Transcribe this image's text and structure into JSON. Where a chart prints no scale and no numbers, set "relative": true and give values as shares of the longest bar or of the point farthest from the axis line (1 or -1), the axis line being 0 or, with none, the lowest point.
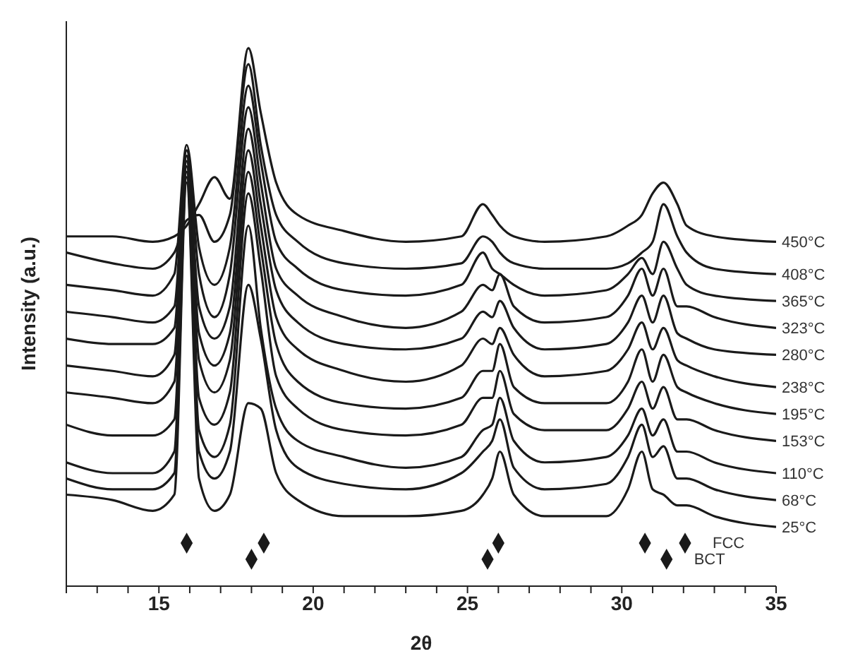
{
  "chart_data": {
    "type": "line",
    "relative": true,
    "xlabel": "2θ",
    "ylabel": "Intensity (a.u.)",
    "xlim": [
      12,
      35
    ],
    "xticks": [
      {
        "value": 12,
        "label": null
      },
      {
        "value": 13,
        "label": null
      },
      {
        "value": 14,
        "label": null
      },
      15,
      {
        "value": 16,
        "label": null
      },
      {
        "value": 17,
        "label": null
      },
      {
        "value": 18,
        "label": null
      },
      {
        "value": 19,
        "label": null
      },
      20,
      {
        "value": 21,
        "label": null
      },
      {
        "value": 22,
        "label": null
      },
      {
        "value": 23,
        "label": null
      },
      {
        "value": 24,
        "label": null
      },
      25,
      {
        "value": 26,
        "label": null
      },
      {
        "value": 27,
        "label": null
      },
      {
        "value": 28,
        "label": null
      },
      {
        "value": 29,
        "label": null
      },
      30,
      {
        "value": 31,
        "label": null
      },
      {
        "value": 32,
        "label": null
      },
      {
        "value": 33,
        "label": null
      },
      {
        "value": 34,
        "label": null
      },
      35
    ],
    "x": [
      12,
      13.5,
      14.8,
      15.5,
      15.9,
      16.3,
      16.8,
      17.3,
      17.9,
      18.3,
      18.8,
      19.5,
      21,
      23,
      24.8,
      25.5,
      25.8,
      26.05,
      26.5,
      27.5,
      29.5,
      30.2,
      30.65,
      31.0,
      31.35,
      31.8,
      32.1,
      33,
      35
    ],
    "series": [
      {
        "name": "450°C",
        "color": "#1a1a1a",
        "values": [
          0.65,
          0.65,
          0.64,
          0.65,
          0.67,
          0.71,
          0.76,
          0.72,
          1.0,
          0.88,
          0.75,
          0.69,
          0.66,
          0.64,
          0.65,
          0.71,
          0.69,
          0.67,
          0.65,
          0.64,
          0.65,
          0.67,
          0.69,
          0.73,
          0.75,
          0.71,
          0.67,
          0.65,
          0.64
        ]
      },
      {
        "name": "408°C",
        "color": "#1a1a1a",
        "values": [
          0.62,
          0.6,
          0.59,
          0.62,
          0.68,
          0.69,
          0.64,
          0.69,
          0.97,
          0.82,
          0.69,
          0.64,
          0.6,
          0.59,
          0.6,
          0.65,
          0.64,
          0.62,
          0.6,
          0.59,
          0.59,
          0.6,
          0.62,
          0.64,
          0.71,
          0.65,
          0.62,
          0.59,
          0.58
        ]
      },
      {
        "name": "365°C",
        "color": "#1a1a1a",
        "values": [
          0.56,
          0.55,
          0.54,
          0.58,
          0.82,
          0.63,
          0.56,
          0.63,
          0.93,
          0.79,
          0.64,
          0.59,
          0.55,
          0.54,
          0.56,
          0.62,
          0.59,
          0.58,
          0.56,
          0.54,
          0.55,
          0.58,
          0.61,
          0.58,
          0.64,
          0.59,
          0.56,
          0.54,
          0.53
        ]
      },
      {
        "name": "323°C",
        "color": "#1a1a1a",
        "values": [
          0.51,
          0.5,
          0.49,
          0.52,
          0.81,
          0.58,
          0.5,
          0.58,
          0.89,
          0.75,
          0.59,
          0.54,
          0.5,
          0.48,
          0.51,
          0.56,
          0.55,
          0.58,
          0.52,
          0.49,
          0.5,
          0.54,
          0.59,
          0.54,
          0.59,
          0.52,
          0.52,
          0.5,
          0.48
        ]
      },
      {
        "name": "280°C",
        "color": "#1a1a1a",
        "values": [
          0.46,
          0.45,
          0.45,
          0.48,
          0.8,
          0.52,
          0.46,
          0.52,
          0.85,
          0.71,
          0.55,
          0.49,
          0.45,
          0.44,
          0.46,
          0.51,
          0.5,
          0.53,
          0.48,
          0.44,
          0.45,
          0.49,
          0.54,
          0.49,
          0.54,
          0.47,
          0.46,
          0.44,
          0.43
        ]
      },
      {
        "name": "238°C",
        "color": "#1a1a1a",
        "values": [
          0.41,
          0.4,
          0.39,
          0.43,
          0.8,
          0.47,
          0.41,
          0.47,
          0.81,
          0.67,
          0.5,
          0.44,
          0.4,
          0.38,
          0.41,
          0.46,
          0.45,
          0.48,
          0.43,
          0.39,
          0.4,
          0.44,
          0.49,
          0.44,
          0.48,
          0.42,
          0.41,
          0.39,
          0.37
        ]
      },
      {
        "name": "195°C",
        "color": "#1a1a1a",
        "values": [
          0.36,
          0.35,
          0.34,
          0.38,
          0.79,
          0.42,
          0.36,
          0.42,
          0.77,
          0.63,
          0.45,
          0.38,
          0.34,
          0.33,
          0.35,
          0.4,
          0.4,
          0.45,
          0.37,
          0.34,
          0.34,
          0.38,
          0.44,
          0.38,
          0.43,
          0.37,
          0.36,
          0.34,
          0.32
        ]
      },
      {
        "name": "153°C",
        "color": "#1a1a1a",
        "values": [
          0.3,
          0.28,
          0.28,
          0.31,
          0.78,
          0.35,
          0.3,
          0.36,
          0.73,
          0.59,
          0.39,
          0.33,
          0.29,
          0.28,
          0.3,
          0.35,
          0.35,
          0.4,
          0.32,
          0.29,
          0.29,
          0.33,
          0.38,
          0.33,
          0.37,
          0.31,
          0.31,
          0.29,
          0.27
        ]
      },
      {
        "name": "110°C",
        "color": "#1a1a1a",
        "values": [
          0.23,
          0.21,
          0.21,
          0.25,
          0.77,
          0.29,
          0.24,
          0.3,
          0.67,
          0.48,
          0.33,
          0.27,
          0.24,
          0.22,
          0.24,
          0.29,
          0.3,
          0.35,
          0.27,
          0.23,
          0.24,
          0.28,
          0.33,
          0.28,
          0.31,
          0.25,
          0.25,
          0.23,
          0.21
        ]
      },
      {
        "name": "68°C",
        "color": "#1a1a1a",
        "values": [
          0.2,
          0.18,
          0.18,
          0.21,
          0.76,
          0.25,
          0.2,
          0.25,
          0.56,
          0.46,
          0.29,
          0.22,
          0.19,
          0.18,
          0.21,
          0.25,
          0.27,
          0.31,
          0.22,
          0.18,
          0.19,
          0.24,
          0.3,
          0.24,
          0.26,
          0.2,
          0.2,
          0.18,
          0.16
        ]
      },
      {
        "name": "25°C",
        "color": "#1a1a1a",
        "values": [
          0.17,
          0.16,
          0.14,
          0.17,
          0.75,
          0.2,
          0.14,
          0.17,
          0.34,
          0.33,
          0.21,
          0.16,
          0.13,
          0.13,
          0.14,
          0.17,
          0.2,
          0.25,
          0.17,
          0.13,
          0.13,
          0.18,
          0.25,
          0.18,
          0.17,
          0.15,
          0.15,
          0.13,
          0.11
        ]
      },
      {
        "name": "FCC",
        "type": "scatter",
        "marker": "diamond",
        "color": "#1a1a1a",
        "x": [
          15.9,
          18.4,
          26.0,
          30.75,
          32.05
        ],
        "values": [
          0.08,
          0.08,
          0.08,
          0.08,
          0.08
        ]
      },
      {
        "name": "BCT",
        "type": "scatter",
        "marker": "diamond",
        "color": "#1a1a1a",
        "x": [
          18.0,
          25.65,
          31.45
        ],
        "values": [
          0.05,
          0.05,
          0.05
        ]
      }
    ]
  }
}
